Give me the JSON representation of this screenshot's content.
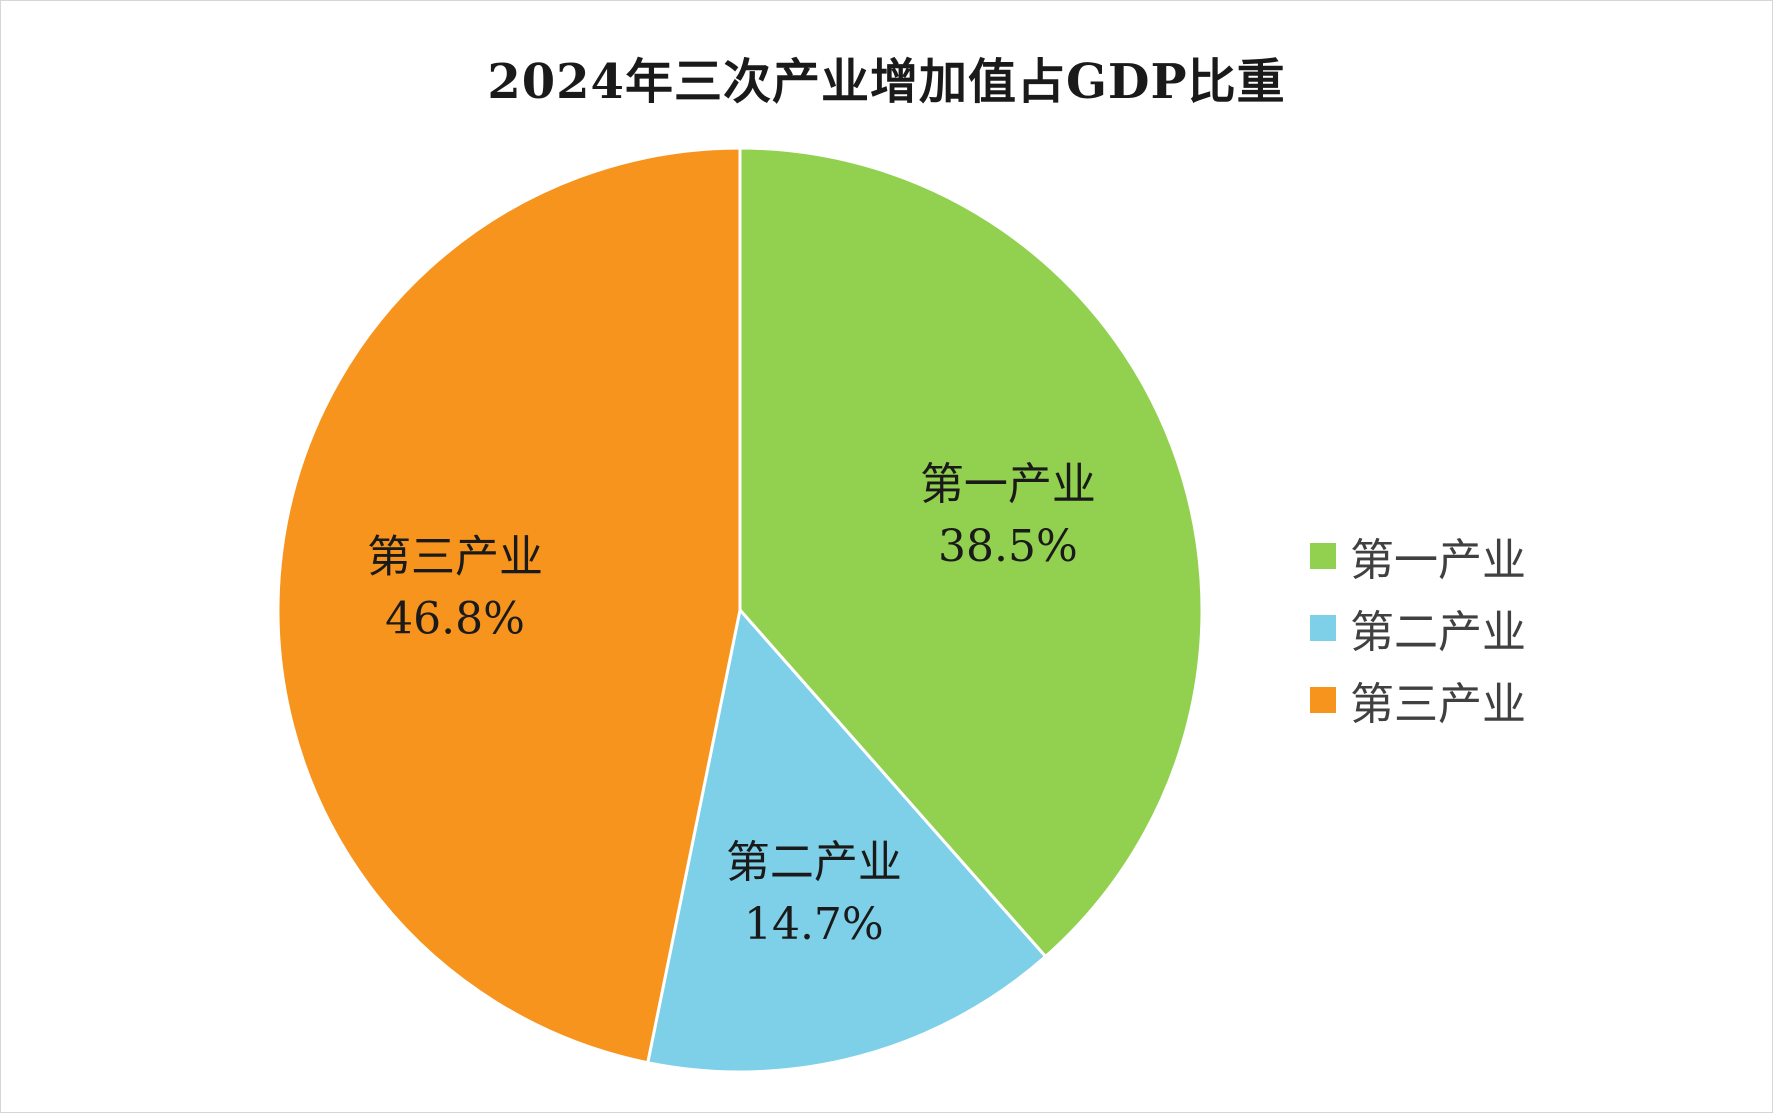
{
  "chart_data": {
    "type": "pie",
    "title": "2024年三次产业增加值占GDP比重",
    "categories": [
      "第一产业",
      "第二产业",
      "第三产业"
    ],
    "values": [
      38.5,
      14.7,
      46.8
    ],
    "value_labels": [
      "38.5%",
      "14.7%",
      "46.8%"
    ],
    "colors": [
      "#92D050",
      "#7DD0E8",
      "#F7941D"
    ],
    "legend": {
      "position": "right",
      "items": [
        "第一产业",
        "第二产业",
        "第三产业"
      ]
    },
    "start_angle": "12 o'clock",
    "direction": "clockwise"
  }
}
